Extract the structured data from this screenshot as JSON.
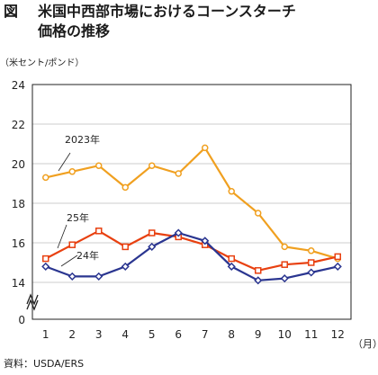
{
  "title": {
    "figure_label": "図",
    "line1": "米国中西部市場におけるコーンスターチ",
    "line2": "価格の推移"
  },
  "source": "資料：USDA/ERS",
  "colors": {
    "series_2023": "#f0a020",
    "series_25": "#e84010",
    "series_24": "#2a3590",
    "axis": "#222222",
    "grid": "#bbbbbb"
  },
  "chart_data": {
    "type": "line",
    "ylabel": "（米セント/ポンド）",
    "xlabel": "（月）",
    "categories": [
      "1",
      "2",
      "3",
      "4",
      "5",
      "6",
      "7",
      "8",
      "9",
      "10",
      "11",
      "12"
    ],
    "y_ticks": [
      0,
      14,
      16,
      18,
      20,
      22,
      24
    ],
    "ylim": [
      0,
      24
    ],
    "axis_break": true,
    "grid": "horizontal",
    "series": [
      {
        "name": "2023年",
        "color": "#f0a020",
        "marker": "circle",
        "values": [
          19.3,
          19.6,
          19.9,
          18.8,
          19.9,
          19.5,
          20.8,
          18.6,
          17.5,
          15.8,
          15.6,
          15.2
        ]
      },
      {
        "name": "25年",
        "color": "#e84010",
        "marker": "square",
        "values": [
          15.2,
          15.9,
          16.6,
          15.8,
          16.5,
          16.3,
          15.9,
          15.2,
          14.6,
          14.9,
          15.0,
          15.3
        ]
      },
      {
        "name": "24年",
        "color": "#2a3590",
        "marker": "diamond",
        "values": [
          14.8,
          14.3,
          14.3,
          14.8,
          15.8,
          16.5,
          16.1,
          14.8,
          14.1,
          14.2,
          14.5,
          14.8
        ]
      }
    ]
  }
}
